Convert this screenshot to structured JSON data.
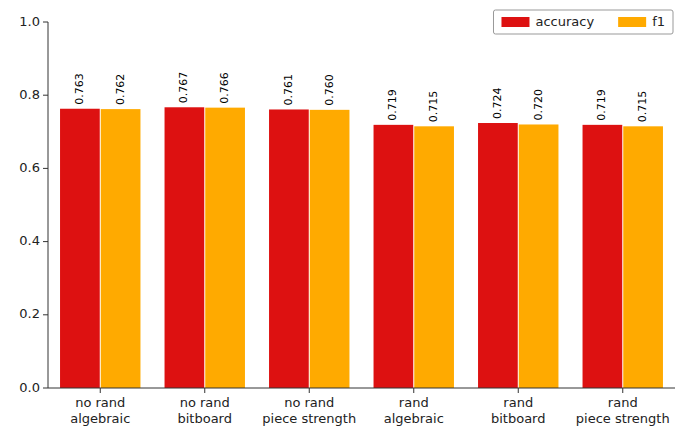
{
  "chart_data": {
    "type": "bar",
    "categories": [
      "no rand\nalgebraic",
      "no rand\nbitboard",
      "no rand\npiece strength",
      "rand\nalgebraic",
      "rand\nbitboard",
      "rand\npiece strength"
    ],
    "series": [
      {
        "name": "accuracy",
        "color": "#dd1111",
        "values": [
          0.763,
          0.767,
          0.761,
          0.719,
          0.724,
          0.719
        ],
        "value_labels": [
          "0.763",
          "0.767",
          "0.761",
          "0.719",
          "0.724",
          "0.719"
        ]
      },
      {
        "name": "f1",
        "color": "#ffaa00",
        "values": [
          0.762,
          0.766,
          0.76,
          0.715,
          0.72,
          0.715
        ],
        "value_labels": [
          "0.762",
          "0.766",
          "0.760",
          "0.715",
          "0.720",
          "0.715"
        ]
      }
    ],
    "ylim": [
      0,
      1.0
    ],
    "yticks": [
      {
        "value": 0,
        "label": "0.0"
      },
      0.2,
      0.4,
      0.6,
      0.8,
      {
        "value": 1.0,
        "label": "1.0"
      }
    ],
    "grid": false,
    "legend": "upper right",
    "data_labels": true
  }
}
